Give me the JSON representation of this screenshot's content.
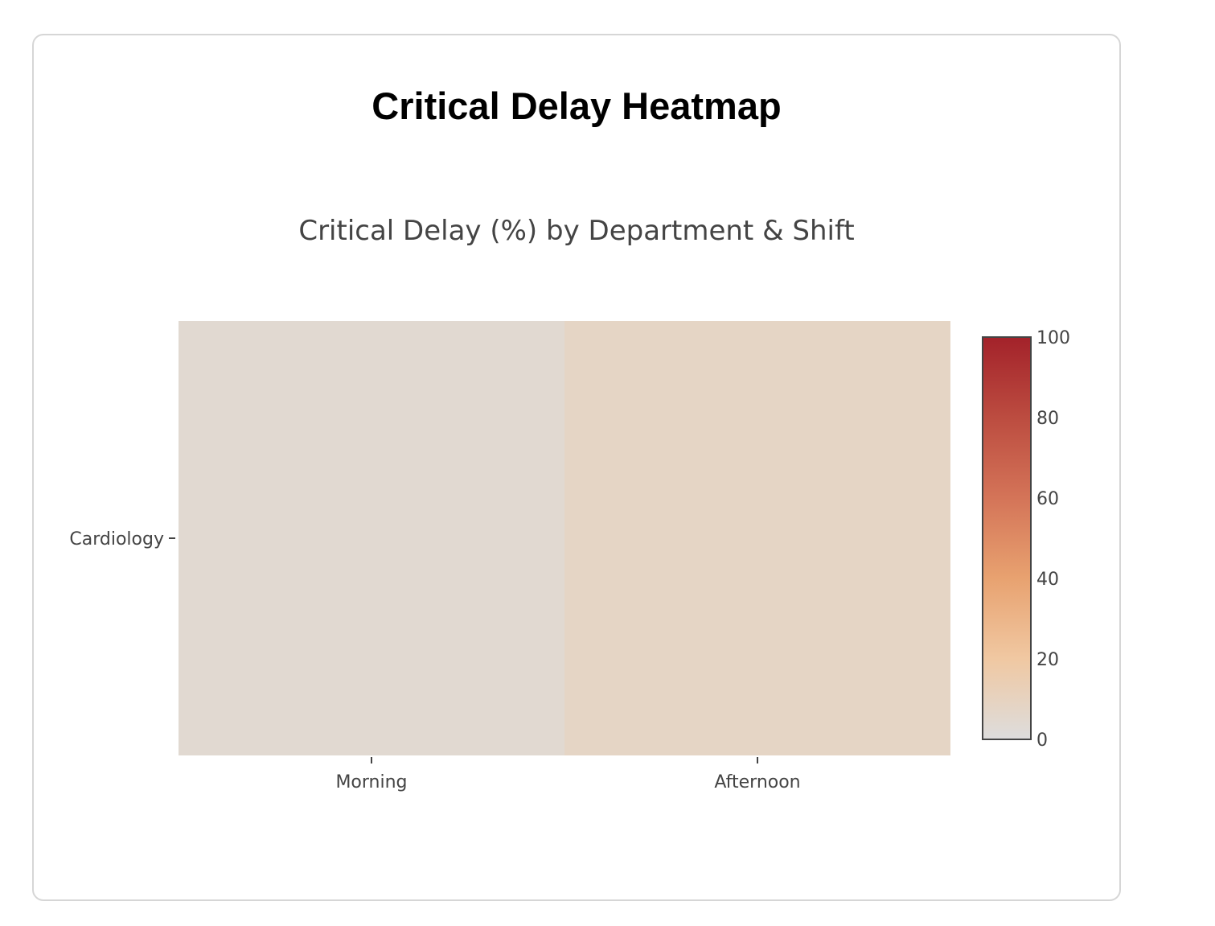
{
  "page_title": "Critical Delay Heatmap",
  "chart_data": {
    "type": "heatmap",
    "title": "Critical Delay (%) by Department & Shift",
    "xlabel": "",
    "ylabel": "",
    "x_categories": [
      "Morning",
      "Afternoon"
    ],
    "y_categories": [
      "Cardiology"
    ],
    "values": [
      [
        4,
        8
      ]
    ],
    "colorbar": {
      "range": [
        0,
        100
      ],
      "ticks": [
        0,
        20,
        40,
        60,
        80,
        100
      ],
      "colorscale": [
        [
          0,
          "#dddddd"
        ],
        [
          0.2,
          "#f0c8a2"
        ],
        [
          0.4,
          "#e8a270"
        ],
        [
          0.6,
          "#d47458"
        ],
        [
          0.8,
          "#bc4c40"
        ],
        [
          1,
          "#a3222a"
        ]
      ]
    }
  }
}
